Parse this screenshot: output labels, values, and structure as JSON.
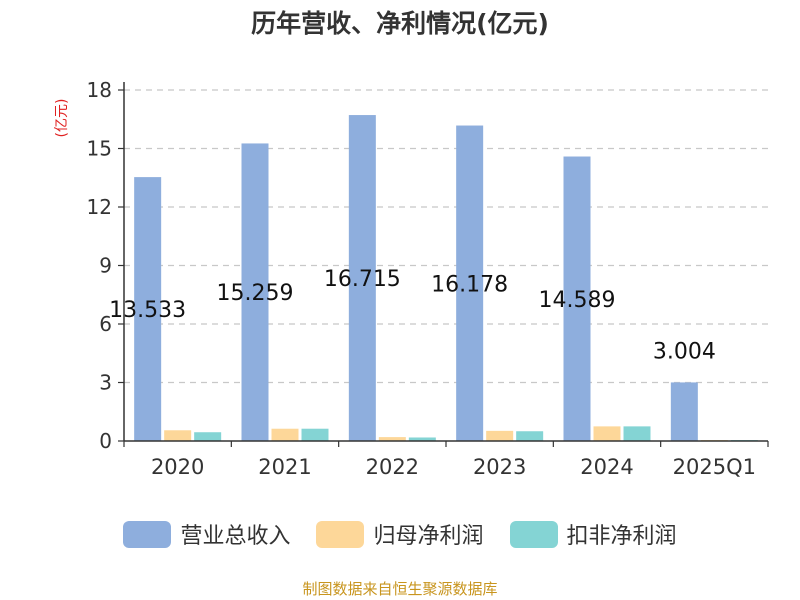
{
  "chart_data": {
    "type": "bar",
    "title": "历年营收、净利情况(亿元)",
    "ylabel": "(亿元)",
    "xlabel": "",
    "categories": [
      "2020",
      "2021",
      "2022",
      "2023",
      "2024",
      "2025Q1"
    ],
    "ylim": [
      0,
      18
    ],
    "yticks": [
      0,
      3,
      6,
      9,
      12,
      15,
      18
    ],
    "grid": true,
    "legend_position": "bottom",
    "series": [
      {
        "name": "营业总收入",
        "color": "#8eaedd",
        "values": [
          13.533,
          15.259,
          16.715,
          16.178,
          14.589,
          3.004
        ],
        "labels": [
          "13.533",
          "15.259",
          "16.715",
          "16.178",
          "14.589",
          "3.004"
        ]
      },
      {
        "name": "归母净利润",
        "color": "#fdd799",
        "values": [
          0.55,
          0.63,
          0.2,
          0.52,
          0.75,
          0.05
        ]
      },
      {
        "name": "扣非净利润",
        "color": "#84d4d4",
        "values": [
          0.45,
          0.63,
          0.18,
          0.5,
          0.75,
          0.05
        ]
      }
    ]
  },
  "footer": {
    "source": "制图数据来自恒生聚源数据库"
  }
}
